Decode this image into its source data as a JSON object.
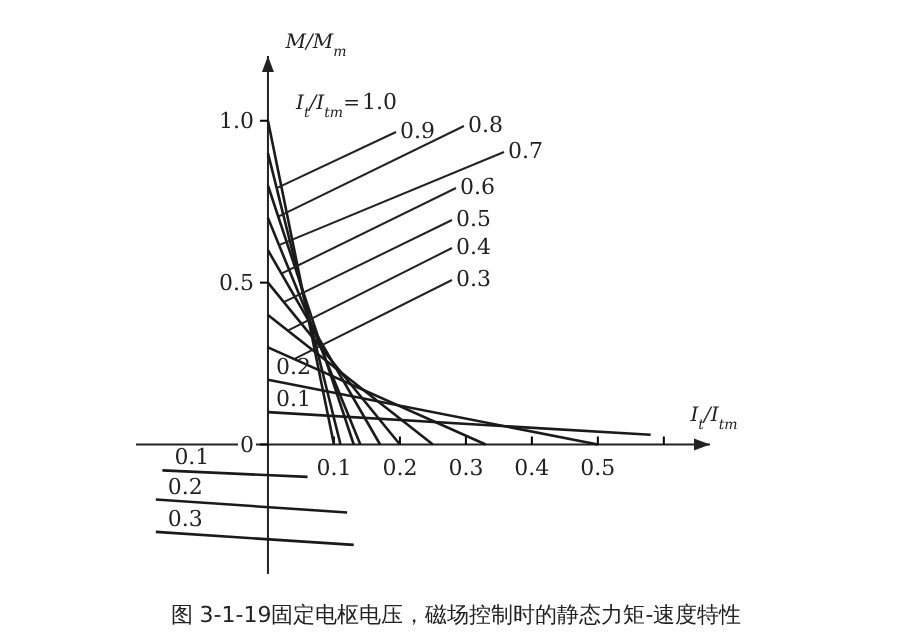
{
  "chart_data": {
    "type": "line",
    "title": "图 3-1-19固定电枢电压，磁场控制时的静态力矩-速度特性",
    "xlabel": "I$_{t}$/I$_{tm}$",
    "ylabel": "M/M$_{m}$",
    "legend_title": "I$_{t}$/I$_{tm}$=",
    "xlim": [
      -0.2,
      0.67
    ],
    "ylim": [
      -0.4,
      1.2
    ],
    "xticks": [
      0.1,
      0.2,
      0.3,
      0.4,
      0.5,
      {
        "value": 0.6,
        "label": null
      }
    ],
    "yticks": [
      0,
      0.5,
      {
        "value": 1.0,
        "label": "1.0"
      }
    ],
    "grid": false,
    "marker": "none",
    "line_style": "solid",
    "series": [
      {
        "name": "1.0",
        "color": "#1a1a1a",
        "x": [
          0,
          0.1
        ],
        "values": [
          1.0,
          0
        ]
      },
      {
        "name": "0.9",
        "color": "#1a1a1a",
        "x": [
          0,
          0.11
        ],
        "values": [
          0.9,
          0
        ]
      },
      {
        "name": "0.8",
        "color": "#1a1a1a",
        "x": [
          0,
          0.13
        ],
        "values": [
          0.8,
          0
        ]
      },
      {
        "name": "0.7",
        "color": "#1a1a1a",
        "x": [
          0,
          0.14
        ],
        "values": [
          0.7,
          0
        ]
      },
      {
        "name": "0.6",
        "color": "#1a1a1a",
        "x": [
          0,
          0.17
        ],
        "values": [
          0.6,
          0
        ]
      },
      {
        "name": "0.5",
        "color": "#1a1a1a",
        "x": [
          0,
          0.2
        ],
        "values": [
          0.5,
          0
        ]
      },
      {
        "name": "0.4",
        "color": "#1a1a1a",
        "x": [
          0,
          0.25
        ],
        "values": [
          0.4,
          0
        ]
      },
      {
        "name": "0.3",
        "color": "#1a1a1a",
        "x": [
          0,
          0.33
        ],
        "values": [
          0.3,
          0
        ]
      },
      {
        "name": "0.2",
        "color": "#1a1a1a",
        "x": [
          0,
          0.5
        ],
        "values": [
          0.2,
          0
        ]
      },
      {
        "name": "0.1",
        "color": "#1a1a1a",
        "x": [
          0,
          0.58
        ],
        "values": [
          0.1,
          0.03
        ]
      },
      {
        "name": "0.1",
        "color": "#1a1a1a",
        "x": [
          -0.16,
          0.06
        ],
        "values": [
          -0.08,
          -0.1
        ]
      },
      {
        "name": "0.2",
        "color": "#1a1a1a",
        "x": [
          -0.17,
          0.12
        ],
        "values": [
          -0.17,
          -0.21
        ]
      },
      {
        "name": "0.3",
        "color": "#1a1a1a",
        "x": [
          -0.17,
          0.13
        ],
        "values": [
          -0.27,
          -0.31
        ]
      }
    ]
  }
}
